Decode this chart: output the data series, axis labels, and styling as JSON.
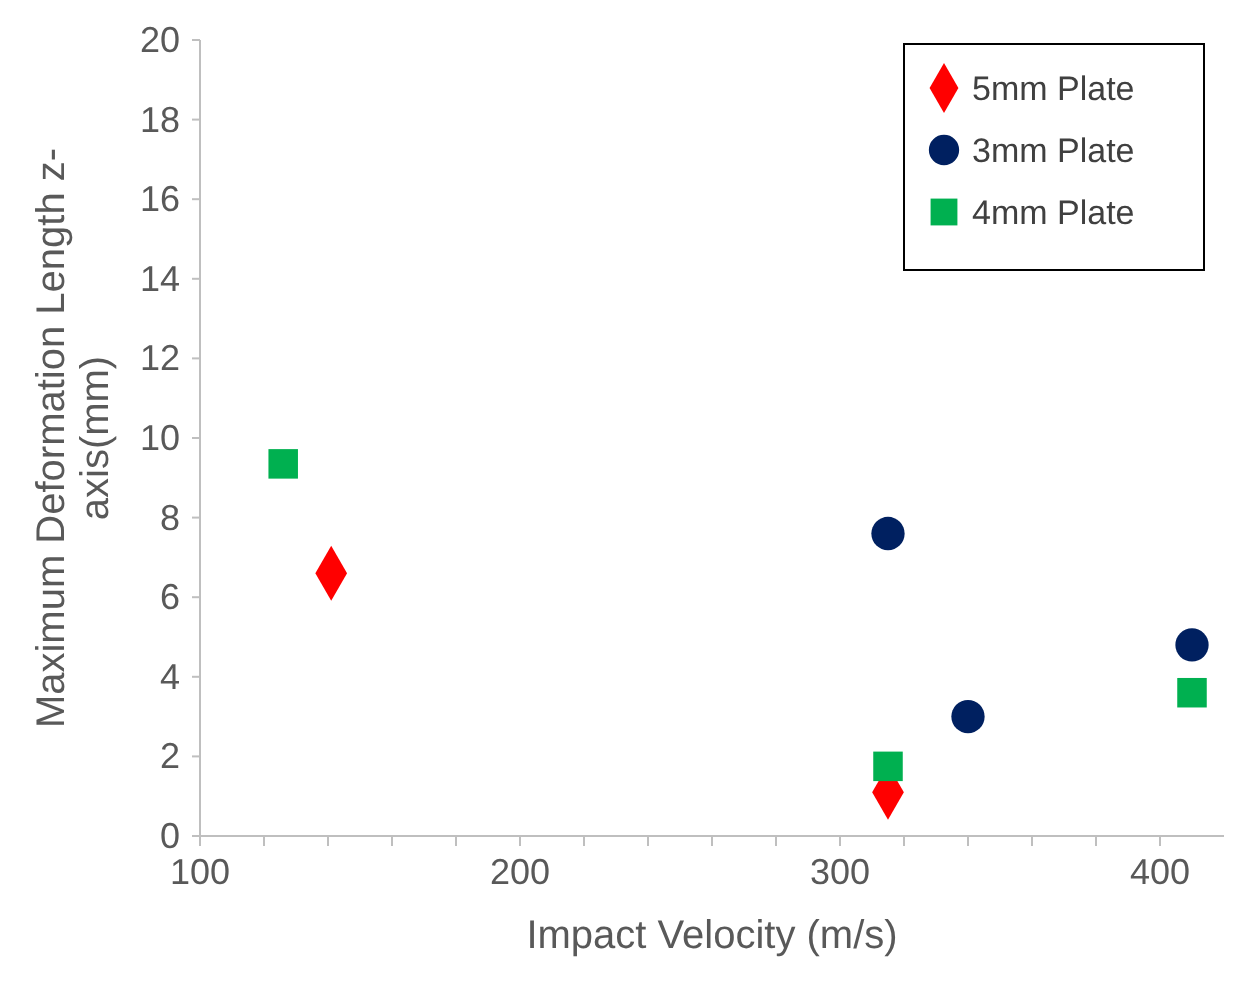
{
  "chart_data": {
    "type": "scatter",
    "xlabel": "Impact Velocity (m/s)",
    "ylabel": "Maximum Deformation Length z-axis(mm)",
    "xlim": [
      100,
      420
    ],
    "xticks": [
      100,
      {
        "value": 120,
        "label": null
      },
      {
        "value": 140,
        "label": null
      },
      {
        "value": 160,
        "label": null
      },
      {
        "value": 180,
        "label": null
      },
      200,
      {
        "value": 220,
        "label": null
      },
      {
        "value": 240,
        "label": null
      },
      {
        "value": 260,
        "label": null
      },
      {
        "value": 280,
        "label": null
      },
      300,
      {
        "value": 320,
        "label": null
      },
      {
        "value": 340,
        "label": null
      },
      {
        "value": 360,
        "label": null
      },
      {
        "value": 380,
        "label": null
      },
      400
    ],
    "ylim": [
      0,
      20
    ],
    "yticks": [
      0,
      2,
      4,
      6,
      8,
      10,
      12,
      14,
      16,
      18,
      20
    ],
    "grid": false,
    "legend": "top right",
    "series": [
      {
        "name": "5mm Plate",
        "color": "#ff0000",
        "marker": "diamond",
        "x": [
          141,
          315
        ],
        "values": [
          6.6,
          1.1
        ]
      },
      {
        "name": "3mm Plate",
        "color": "#002060",
        "marker": "circle",
        "x": [
          315,
          340,
          410
        ],
        "values": [
          7.6,
          3.0,
          4.8
        ]
      },
      {
        "name": "4mm Plate",
        "color": "#00b050",
        "marker": "square",
        "x": [
          126,
          315,
          410
        ],
        "values": [
          9.35,
          1.75,
          3.6
        ]
      }
    ]
  }
}
